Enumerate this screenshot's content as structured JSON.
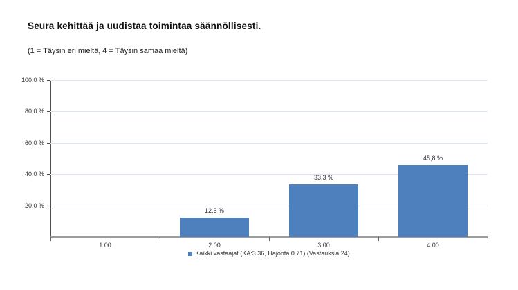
{
  "title": "Seura kehittää ja uudistaa toimintaa säännöllisesti.",
  "subtitle": "(1 = Täysin eri mieltä, 4 = Täysin samaa mieltä)",
  "legend": {
    "label": "Kaikki vastaajat (KA:3.36, Hajonta:0.71) (Vastauksia:24)",
    "marker_color": "#4e80bd"
  },
  "colors": {
    "bar": "#4e80bd",
    "gridline": "#dce6f1",
    "y_axis": "#4d4d4d",
    "x_axis": "#9c9c9c",
    "text": "#333333"
  },
  "chart_data": {
    "type": "bar",
    "title": "Seura kehittää ja uudistaa toimintaa säännöllisesti.",
    "subtitle": "(1 = Täysin eri mieltä, 4 = Täysin samaa mieltä)",
    "categories": [
      "1.00",
      "2.00",
      "3.00",
      "4.00"
    ],
    "values": [
      0,
      12.5,
      33.3,
      45.8
    ],
    "value_labels": [
      "",
      "12,5 %",
      "33,3 %",
      "45,8 %"
    ],
    "series_name": "Kaikki vastaajat (KA:3.36, Hajonta:0.71) (Vastauksia:24)",
    "stats": {
      "KA": 3.36,
      "Hajonta": 0.71,
      "Vastauksia": 24
    },
    "xlabel": "",
    "ylabel": "",
    "ylim": [
      0,
      100
    ],
    "y_ticks": [
      20,
      40,
      60,
      80,
      100
    ],
    "y_tick_labels": [
      "20,0 %",
      "40,0 %",
      "60,0 %",
      "80,0 %",
      "100,0 %"
    ],
    "grid": true,
    "legend_position": "bottom"
  }
}
